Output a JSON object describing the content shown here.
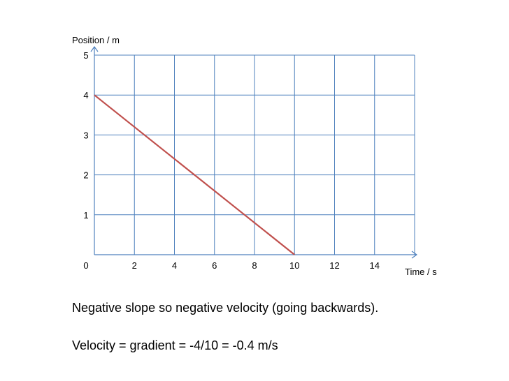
{
  "chart_data": {
    "type": "line",
    "xlabel": "Time / s",
    "ylabel": "Position / m",
    "xlim": [
      0,
      16
    ],
    "ylim": [
      0,
      5
    ],
    "x_ticks": [
      0,
      2,
      4,
      6,
      8,
      10,
      12,
      14
    ],
    "y_ticks": [
      1,
      2,
      3,
      4,
      5
    ],
    "grid": true,
    "series": [
      {
        "x": [
          0,
          10
        ],
        "y": [
          4,
          0
        ],
        "color": "#c0504d"
      }
    ]
  },
  "colors": {
    "axis": "#4f81bd",
    "grid": "#4f81bd",
    "line": "#c0504d"
  },
  "annotations": {
    "note1": "Negative slope so negative velocity (going backwards).",
    "note2": "Velocity = gradient = -4/10 = -0.4 m/s"
  }
}
